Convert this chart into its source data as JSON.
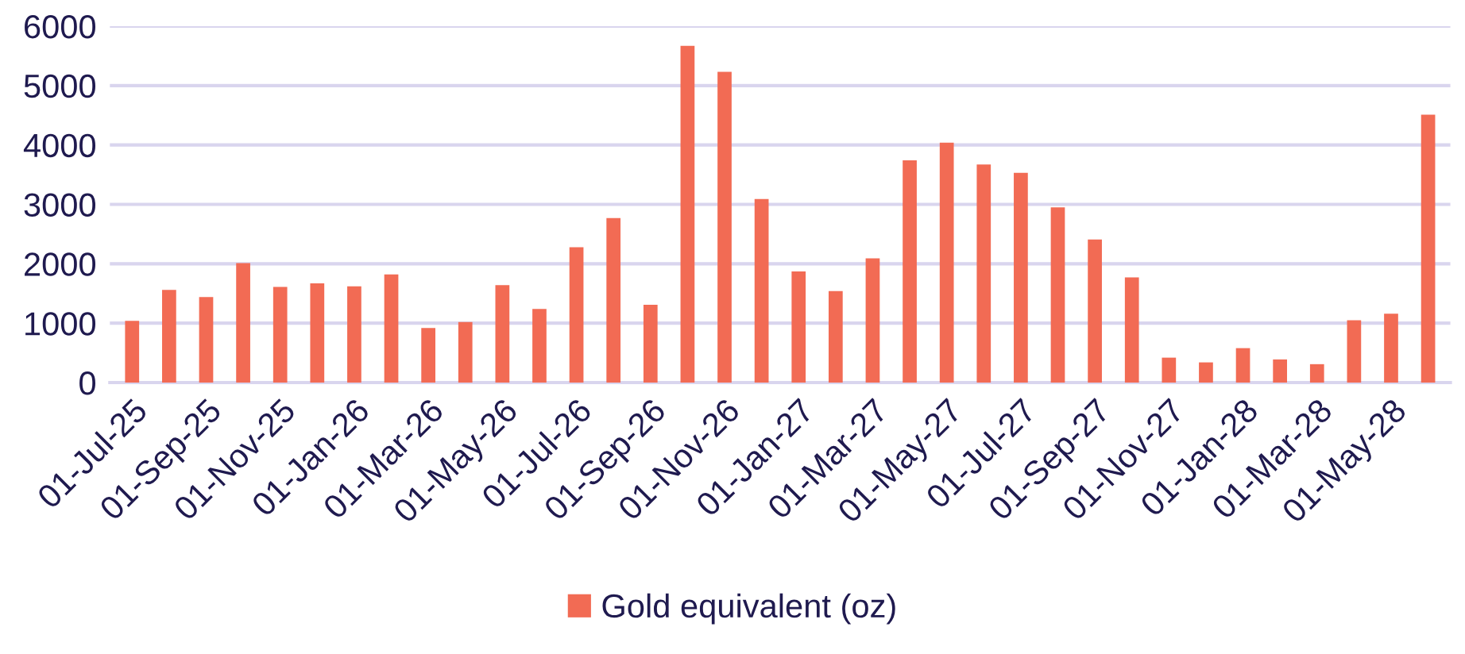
{
  "chart_data": {
    "type": "bar",
    "categories": [
      "01-Jul-25",
      null,
      "01-Sep-25",
      null,
      "01-Nov-25",
      null,
      "01-Jan-26",
      null,
      "01-Mar-26",
      null,
      "01-May-26",
      null,
      "01-Jul-26",
      null,
      "01-Sep-26",
      null,
      "01-Nov-26",
      null,
      "01-Jan-27",
      null,
      "01-Mar-27",
      null,
      "01-May-27",
      null,
      "01-Jul-27",
      null,
      "01-Sep-27",
      null,
      "01-Nov-27",
      null,
      "01-Jan-28",
      null,
      "01-Mar-28",
      null,
      "01-May-28",
      null
    ],
    "series": [
      {
        "name": "Gold equivalent (oz)",
        "color": "#f26b54",
        "values": [
          1040,
          1560,
          1440,
          2010,
          1610,
          1670,
          1620,
          1820,
          920,
          1020,
          1640,
          1240,
          2280,
          2770,
          1310,
          5670,
          5230,
          3090,
          1870,
          1540,
          2090,
          3740,
          4040,
          3670,
          3530,
          2950,
          2410,
          1770,
          420,
          340,
          580,
          390,
          310,
          1050,
          1160,
          4510
        ]
      }
    ],
    "ylim": [
      0,
      6000
    ],
    "yticks": [
      0,
      1000,
      2000,
      3000,
      4000,
      5000,
      6000
    ],
    "grid": "y",
    "legend": "bottom"
  }
}
